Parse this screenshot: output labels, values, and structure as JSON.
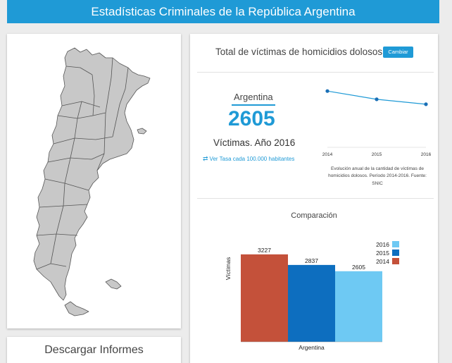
{
  "header": {
    "title": "Estadísticas Criminales de la República Argentina"
  },
  "map": {
    "icon": "argentina-map"
  },
  "downloads": {
    "title": "Descargar Informes"
  },
  "stat": {
    "title": "Total de víctimas de homicidios dolosos",
    "change_button": "Cambiar",
    "region": "Argentina",
    "value": "2605",
    "value_label": "Víctimas. Año 2016",
    "rate_link": "Ver Tasa cada 100.000 habitantes",
    "rate_icon": "swap-arrows-icon"
  },
  "trend": {
    "caption": "Evolución anual de la cantidad de víctimas de homicidios dolosos. Período 2014-2016. Fuente: SNIC"
  },
  "comparison": {
    "title": "Comparación"
  },
  "colors": {
    "accent": "#1f9ad6",
    "y2014": "#c4513a",
    "y2015": "#0d6ebf",
    "y2016": "#6ec9f3"
  },
  "chart_data": [
    {
      "type": "line",
      "x": [
        "2014",
        "2015",
        "2016"
      ],
      "series": [
        {
          "values": [
            3227,
            2837,
            2605
          ]
        }
      ],
      "ylim": [
        0,
        3500
      ],
      "grid": false,
      "legend": "none"
    },
    {
      "type": "bar",
      "categories": [
        "Argentina"
      ],
      "series": [
        {
          "name": "2014",
          "values": [
            3227
          ]
        },
        {
          "name": "2015",
          "values": [
            2837
          ]
        },
        {
          "name": "2016",
          "values": [
            2605
          ]
        }
      ],
      "xlabel": "Argentina",
      "ylabel": "Víctimas",
      "ylim": [
        0,
        3900
      ],
      "legend": "top-right",
      "legend_order": [
        "2016",
        "2015",
        "2014"
      ]
    }
  ]
}
